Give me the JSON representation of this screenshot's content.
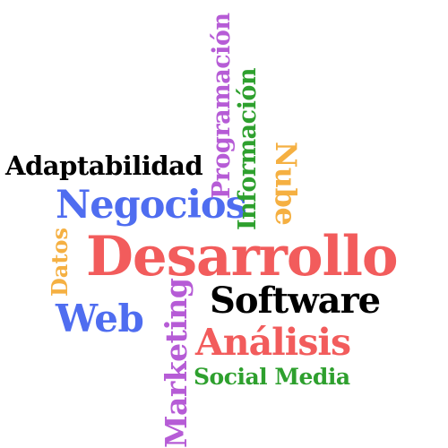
{
  "words": [
    {
      "id": "desarrollo",
      "text": "Desarrollo",
      "color": "#f25c5c",
      "orientation": "horizontal"
    },
    {
      "id": "adaptabilidad",
      "text": "Adaptabilidad",
      "color": "#000000",
      "orientation": "horizontal"
    },
    {
      "id": "negocios",
      "text": "Negocios",
      "color": "#4f6df0",
      "orientation": "horizontal"
    },
    {
      "id": "software",
      "text": "Software",
      "color": "#000000",
      "orientation": "horizontal"
    },
    {
      "id": "web",
      "text": "Web",
      "color": "#4f6df0",
      "orientation": "horizontal"
    },
    {
      "id": "analisis",
      "text": "Análisis",
      "color": "#f25c5c",
      "orientation": "horizontal"
    },
    {
      "id": "social_media",
      "text": "Social Media",
      "color": "#2ea02e",
      "orientation": "horizontal"
    },
    {
      "id": "programacion",
      "text": "Programación",
      "color": "#b65cd6",
      "orientation": "vertical-up"
    },
    {
      "id": "informacion",
      "text": "Información",
      "color": "#2ea02e",
      "orientation": "vertical-up"
    },
    {
      "id": "nube",
      "text": "Nube",
      "color": "#f5b042",
      "orientation": "vertical-down"
    },
    {
      "id": "datos",
      "text": "Datos",
      "color": "#f5b042",
      "orientation": "vertical-up"
    },
    {
      "id": "marketing",
      "text": "Marketing",
      "color": "#b65cd6",
      "orientation": "vertical-up"
    }
  ]
}
